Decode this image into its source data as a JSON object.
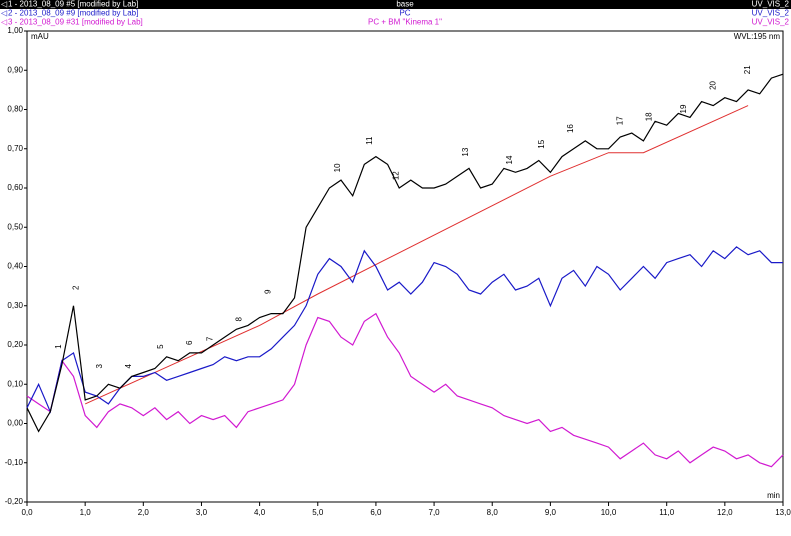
{
  "chart_data": {
    "type": "line",
    "y_label": "mAU",
    "x_label": "min",
    "annotation": "WVL:195 nm",
    "xlim": [
      0,
      13
    ],
    "ylim": [
      -0.2,
      1.0
    ],
    "xticks": [
      {
        "value": 0,
        "label": "0,0"
      },
      {
        "value": 1,
        "label": "1,0"
      },
      {
        "value": 2,
        "label": "2,0"
      },
      {
        "value": 3,
        "label": "3,0"
      },
      {
        "value": 4,
        "label": "4,0"
      },
      {
        "value": 5,
        "label": "5,0"
      },
      {
        "value": 6,
        "label": "6,0"
      },
      {
        "value": 7,
        "label": "7,0"
      },
      {
        "value": 8,
        "label": "8,0"
      },
      {
        "value": 9,
        "label": "9,0"
      },
      {
        "value": 10,
        "label": "10,0"
      },
      {
        "value": 11,
        "label": "11,0"
      },
      {
        "value": 12,
        "label": "12,0"
      },
      {
        "value": 13,
        "label": "13,0"
      }
    ],
    "yticks": [
      {
        "value": -0.2,
        "label": "-0,20"
      },
      {
        "value": -0.1,
        "label": "-0,10"
      },
      {
        "value": 0,
        "label": "0,00"
      },
      {
        "value": 0.1,
        "label": "0,10"
      },
      {
        "value": 0.2,
        "label": "0,20"
      },
      {
        "value": 0.3,
        "label": "0,30"
      },
      {
        "value": 0.4,
        "label": "0,40"
      },
      {
        "value": 0.5,
        "label": "0,50"
      },
      {
        "value": 0.6,
        "label": "0,60"
      },
      {
        "value": 0.7,
        "label": "0,70"
      },
      {
        "value": 0.8,
        "label": "0,80"
      },
      {
        "value": 0.9,
        "label": "0,90"
      },
      {
        "value": 1.0,
        "label": "1,00"
      }
    ],
    "x": [
      0.0,
      0.2,
      0.4,
      0.6,
      0.8,
      1.0,
      1.2,
      1.4,
      1.6,
      1.8,
      2.0,
      2.2,
      2.4,
      2.6,
      2.8,
      3.0,
      3.2,
      3.4,
      3.6,
      3.8,
      4.0,
      4.2,
      4.4,
      4.6,
      4.8,
      5.0,
      5.2,
      5.4,
      5.6,
      5.8,
      6.0,
      6.2,
      6.4,
      6.6,
      6.8,
      7.0,
      7.2,
      7.4,
      7.6,
      7.8,
      8.0,
      8.2,
      8.4,
      8.6,
      8.8,
      9.0,
      9.2,
      9.4,
      9.6,
      9.8,
      10.0,
      10.2,
      10.4,
      10.6,
      10.8,
      11.0,
      11.2,
      11.4,
      11.6,
      11.8,
      12.0,
      12.2,
      12.4,
      12.6,
      12.8,
      13.0
    ],
    "series": [
      {
        "name": "1 - 2013_08_09 #5 [modified by Lab]",
        "method": "base",
        "channel": "UV_VIS_2",
        "color": "#000000",
        "values": [
          0.04,
          -0.02,
          0.03,
          0.15,
          0.3,
          0.06,
          0.07,
          0.1,
          0.09,
          0.12,
          0.13,
          0.14,
          0.17,
          0.16,
          0.18,
          0.18,
          0.2,
          0.22,
          0.24,
          0.25,
          0.27,
          0.28,
          0.28,
          0.32,
          0.5,
          0.55,
          0.6,
          0.62,
          0.58,
          0.66,
          0.68,
          0.66,
          0.6,
          0.62,
          0.6,
          0.6,
          0.61,
          0.63,
          0.65,
          0.6,
          0.61,
          0.65,
          0.64,
          0.65,
          0.67,
          0.64,
          0.68,
          0.7,
          0.72,
          0.7,
          0.7,
          0.73,
          0.74,
          0.72,
          0.77,
          0.76,
          0.79,
          0.78,
          0.82,
          0.81,
          0.83,
          0.82,
          0.85,
          0.84,
          0.88,
          0.89
        ]
      },
      {
        "name": "2 - 2013_08_09 #9 [modified by Lab]",
        "method": "PC",
        "channel": "UV_VIS_2",
        "color": "#1a1ac8",
        "values": [
          0.04,
          0.1,
          0.03,
          0.16,
          0.18,
          0.08,
          0.07,
          0.05,
          0.09,
          0.12,
          0.12,
          0.13,
          0.11,
          0.12,
          0.13,
          0.14,
          0.15,
          0.17,
          0.16,
          0.17,
          0.17,
          0.19,
          0.22,
          0.25,
          0.3,
          0.38,
          0.42,
          0.4,
          0.36,
          0.44,
          0.4,
          0.34,
          0.36,
          0.33,
          0.36,
          0.41,
          0.4,
          0.38,
          0.34,
          0.33,
          0.36,
          0.38,
          0.34,
          0.35,
          0.37,
          0.3,
          0.37,
          0.39,
          0.35,
          0.4,
          0.38,
          0.34,
          0.37,
          0.4,
          0.37,
          0.41,
          0.42,
          0.43,
          0.4,
          0.44,
          0.42,
          0.45,
          0.43,
          0.44,
          0.41,
          0.41
        ]
      },
      {
        "name": "3 - 2013_08_09 #31 [modified by Lab]",
        "method": "PC + BM \"Kinema 1\"",
        "channel": "UV_VIS_2",
        "color": "#d11ad1",
        "values": [
          0.07,
          0.05,
          0.03,
          0.16,
          0.12,
          0.02,
          -0.01,
          0.03,
          0.05,
          0.04,
          0.02,
          0.04,
          0.01,
          0.03,
          0.0,
          0.02,
          0.01,
          0.02,
          -0.01,
          0.03,
          0.04,
          0.05,
          0.06,
          0.1,
          0.2,
          0.27,
          0.26,
          0.22,
          0.2,
          0.26,
          0.28,
          0.22,
          0.18,
          0.12,
          0.1,
          0.08,
          0.1,
          0.07,
          0.06,
          0.05,
          0.04,
          0.02,
          0.01,
          0.0,
          0.01,
          -0.02,
          -0.01,
          -0.03,
          -0.04,
          -0.05,
          -0.06,
          -0.09,
          -0.07,
          -0.05,
          -0.08,
          -0.09,
          -0.07,
          -0.1,
          -0.08,
          -0.06,
          -0.07,
          -0.09,
          -0.08,
          -0.1,
          -0.11,
          -0.08
        ]
      }
    ],
    "baseline": {
      "color": "#e03030",
      "x": [
        1.0,
        2.5,
        4.0,
        5.0,
        9.0,
        10.0,
        10.6,
        12.4
      ],
      "y": [
        0.05,
        0.15,
        0.25,
        0.33,
        0.63,
        0.69,
        0.69,
        0.81
      ]
    },
    "peaks": [
      {
        "label": "1",
        "x": 0.55,
        "y": 0.19
      },
      {
        "label": "2",
        "x": 0.85,
        "y": 0.34
      },
      {
        "label": "3",
        "x": 1.25,
        "y": 0.14
      },
      {
        "label": "4",
        "x": 1.75,
        "y": 0.14
      },
      {
        "label": "5",
        "x": 2.3,
        "y": 0.19
      },
      {
        "label": "6",
        "x": 2.8,
        "y": 0.2
      },
      {
        "label": "7",
        "x": 3.15,
        "y": 0.21
      },
      {
        "label": "8",
        "x": 3.65,
        "y": 0.26
      },
      {
        "label": "9",
        "x": 4.15,
        "y": 0.33
      },
      {
        "label": "10",
        "x": 5.35,
        "y": 0.64
      },
      {
        "label": "11",
        "x": 5.9,
        "y": 0.71
      },
      {
        "label": "12",
        "x": 6.35,
        "y": 0.62
      },
      {
        "label": "13",
        "x": 7.55,
        "y": 0.68
      },
      {
        "label": "14",
        "x": 8.3,
        "y": 0.66
      },
      {
        "label": "15",
        "x": 8.85,
        "y": 0.7
      },
      {
        "label": "16",
        "x": 9.35,
        "y": 0.74
      },
      {
        "label": "17",
        "x": 10.2,
        "y": 0.76
      },
      {
        "label": "18",
        "x": 10.7,
        "y": 0.77
      },
      {
        "label": "19",
        "x": 11.3,
        "y": 0.79
      },
      {
        "label": "20",
        "x": 11.8,
        "y": 0.85
      },
      {
        "label": "21",
        "x": 12.4,
        "y": 0.89
      }
    ]
  }
}
